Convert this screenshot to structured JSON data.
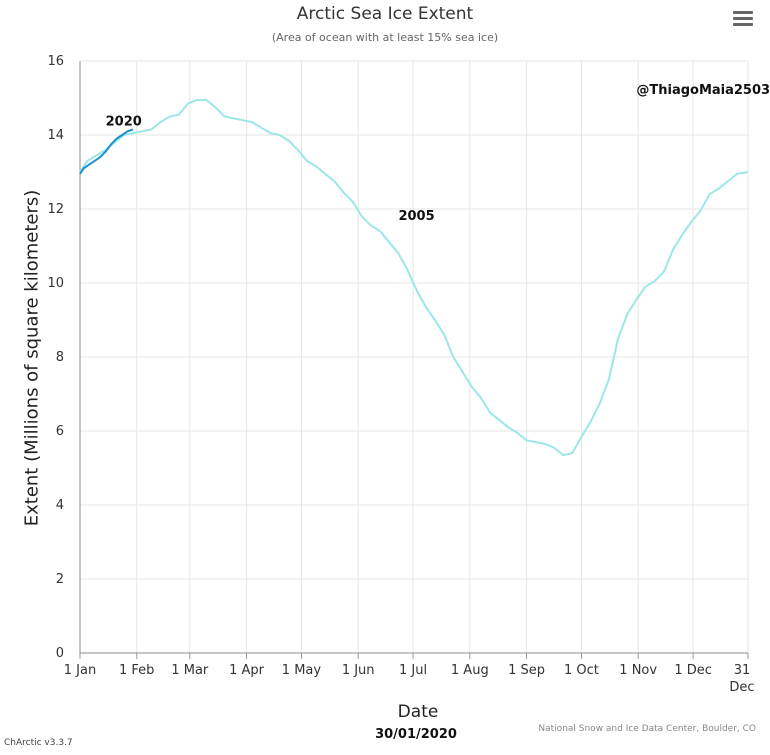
{
  "header": {
    "title": "Arctic Sea Ice Extent",
    "subtitle": "(Area of ocean with at least 15% sea ice)"
  },
  "menu_icon": "hamburger-menu-icon",
  "footer": {
    "date": "30/01/2020",
    "credit": "National Snow and Ice Data Center, Boulder, CO",
    "version": "ChArctic v3.3.7"
  },
  "chart_data": {
    "type": "line",
    "title": "Arctic Sea Ice Extent",
    "subtitle": "(Area of ocean with at least 15% sea ice)",
    "xlabel": "Date",
    "ylabel": "Extent (Millions of square kilometers)",
    "xlim": [
      1,
      366
    ],
    "ylim": [
      0,
      16
    ],
    "yticks": [
      0,
      2,
      4,
      6,
      8,
      10,
      12,
      14,
      16
    ],
    "xticks": [
      {
        "day": 1,
        "label": "1 Jan"
      },
      {
        "day": 32,
        "label": "1 Feb"
      },
      {
        "day": 61,
        "label": "1 Mar"
      },
      {
        "day": 92,
        "label": "1 Apr"
      },
      {
        "day": 122,
        "label": "1 May"
      },
      {
        "day": 153,
        "label": "1 Jun"
      },
      {
        "day": 183,
        "label": "1 Jul"
      },
      {
        "day": 214,
        "label": "1 Aug"
      },
      {
        "day": 245,
        "label": "1 Sep"
      },
      {
        "day": 275,
        "label": "1 Oct"
      },
      {
        "day": 306,
        "label": "1 Nov"
      },
      {
        "day": 336,
        "label": "1 Dec"
      },
      {
        "day": 366,
        "label": "31 Dec"
      }
    ],
    "grid": true,
    "series": [
      {
        "name": "2005",
        "color": "#9be7e7",
        "x": [
          1,
          5,
          10,
          15,
          20,
          25,
          30,
          35,
          40,
          45,
          50,
          55,
          60,
          65,
          70,
          75,
          80,
          85,
          90,
          95,
          100,
          105,
          110,
          115,
          120,
          125,
          130,
          135,
          140,
          145,
          150,
          155,
          160,
          165,
          170,
          175,
          180,
          185,
          190,
          195,
          200,
          205,
          210,
          215,
          220,
          225,
          230,
          235,
          240,
          245,
          250,
          255,
          260,
          265,
          270,
          275,
          280,
          285,
          290,
          295,
          300,
          305,
          310,
          315,
          320,
          325,
          330,
          335,
          340,
          345,
          350,
          355,
          360,
          366
        ],
        "y": [
          13.0,
          13.3,
          13.45,
          13.6,
          13.8,
          14.0,
          14.05,
          14.1,
          14.15,
          14.35,
          14.5,
          14.55,
          14.85,
          14.95,
          14.95,
          14.75,
          14.5,
          14.45,
          14.4,
          14.35,
          14.2,
          14.05,
          14.0,
          13.85,
          13.6,
          13.3,
          13.15,
          12.95,
          12.75,
          12.45,
          12.2,
          11.8,
          11.55,
          11.4,
          11.1,
          10.8,
          10.35,
          9.8,
          9.35,
          9.0,
          8.6,
          8.0,
          7.6,
          7.2,
          6.9,
          6.5,
          6.3,
          6.1,
          5.95,
          5.75,
          5.7,
          5.65,
          5.55,
          5.35,
          5.4,
          5.85,
          6.25,
          6.75,
          7.4,
          8.5,
          9.15,
          9.55,
          9.9,
          10.05,
          10.3,
          10.9,
          11.3,
          11.65,
          11.95,
          12.4,
          12.55,
          12.75,
          12.95,
          13.0
        ]
      },
      {
        "name": "2020",
        "color": "#1f8fcf",
        "x": [
          1,
          3,
          6,
          9,
          12,
          15,
          18,
          21,
          24,
          27,
          30
        ],
        "y": [
          12.95,
          13.1,
          13.2,
          13.3,
          13.4,
          13.55,
          13.75,
          13.9,
          14.0,
          14.1,
          14.15
        ]
      }
    ],
    "annotations": [
      {
        "text": "2020",
        "x": 15,
        "y": 14.15
      },
      {
        "text": "2005",
        "x": 175,
        "y": 11.6
      },
      {
        "text": "@ThiagoMaia2503",
        "x": 305,
        "y": 15.0
      }
    ]
  }
}
